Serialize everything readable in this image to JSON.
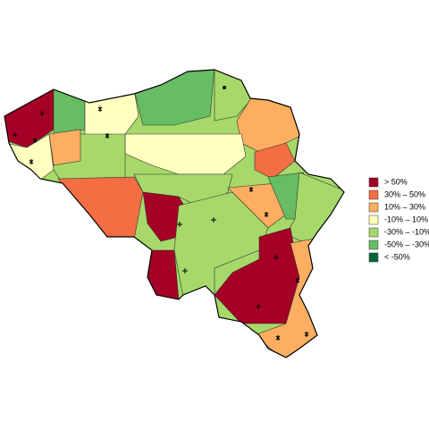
{
  "legend": {
    "items": [
      {
        "label": "> 50%",
        "color": "#a50026"
      },
      {
        "label": "30%  –  50%",
        "color": "#f46d43"
      },
      {
        "label": "10%  –  30%",
        "color": "#fdae61"
      },
      {
        "label": "-10%  –  10%",
        "color": "#ffffbf"
      },
      {
        "label": "-30%  – -10%",
        "color": "#a6d96a"
      },
      {
        "label": "-50%  – -30%",
        "color": "#66bd63"
      },
      {
        "label": "< -50%",
        "color": "#006837"
      }
    ]
  }
}
